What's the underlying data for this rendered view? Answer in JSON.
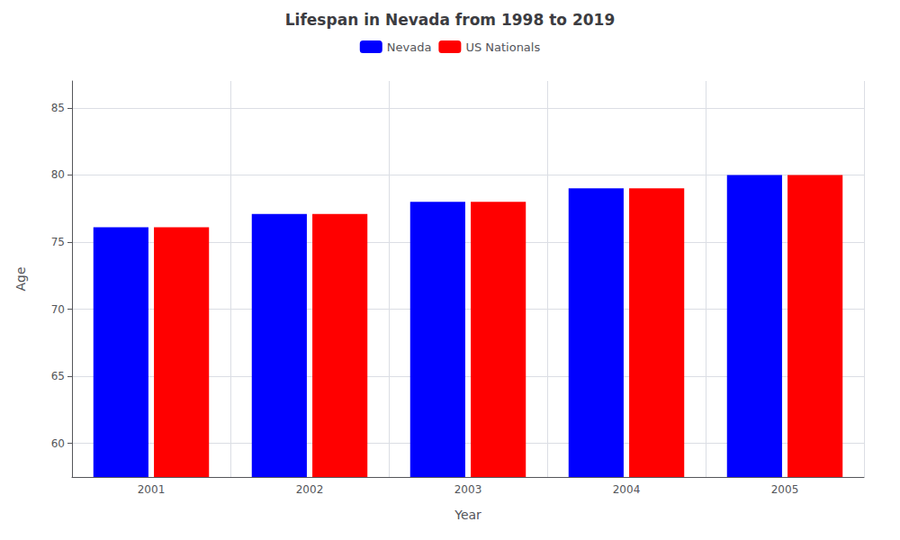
{
  "chart_data": {
    "type": "bar",
    "title": "Lifespan in Nevada from 1998 to 2019",
    "x_label": "Year",
    "y_label": "Age",
    "categories": [
      "2001",
      "2002",
      "2003",
      "2004",
      "2005"
    ],
    "series": [
      {
        "name": "Nevada",
        "color": "#0000ff",
        "values": [
          76.1,
          77.1,
          78.0,
          79.0,
          80.0
        ]
      },
      {
        "name": "US Nationals",
        "color": "#ff0000",
        "values": [
          76.1,
          77.1,
          78.0,
          79.0,
          80.0
        ]
      }
    ],
    "ylim": [
      57.5,
      87
    ],
    "yticks": [
      60,
      65,
      70,
      75,
      80,
      85
    ],
    "grid": true,
    "legend": "top"
  }
}
